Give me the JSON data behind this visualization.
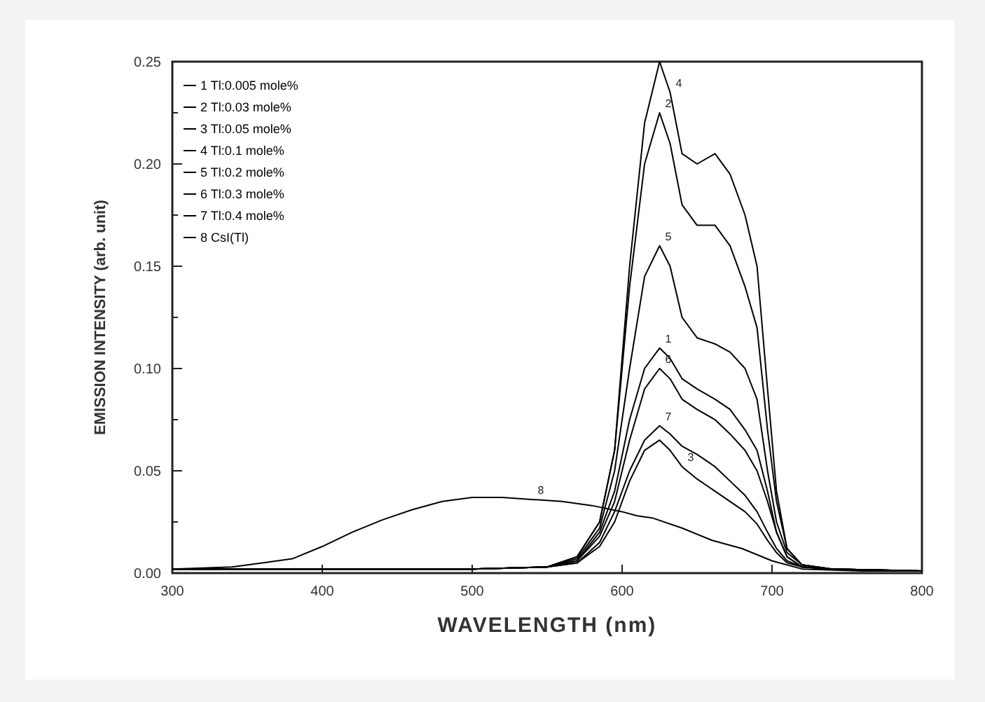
{
  "chart_data": {
    "type": "line",
    "xlabel": "WAVELENGTH (nm)",
    "ylabel": "EMISSION INTENSITY (arb. unit)",
    "x": [
      300,
      400,
      500,
      550,
      570,
      585,
      595,
      605,
      615,
      625,
      632,
      640,
      650,
      662,
      672,
      682,
      690,
      697,
      703,
      710,
      720,
      740,
      800
    ],
    "xlim": [
      300,
      800
    ],
    "xticks": [
      300,
      400,
      500,
      600,
      700,
      800
    ],
    "ylim": [
      0,
      0.25
    ],
    "yticks": [
      {
        "value": 0,
        "label": "0.00"
      },
      {
        "value": 0.025,
        "label": null
      },
      {
        "value": 0.05,
        "label": "0.05"
      },
      {
        "value": 0.075,
        "label": null
      },
      {
        "value": 0.1,
        "label": "0.10"
      },
      {
        "value": 0.125,
        "label": null
      },
      {
        "value": 0.15,
        "label": "0.15"
      },
      {
        "value": 0.175,
        "label": null
      },
      {
        "value": 0.2,
        "label": "0.20"
      },
      {
        "value": 0.225,
        "label": null
      },
      {
        "value": 0.25,
        "label": "0.25"
      }
    ],
    "legend": "top left",
    "grid": false,
    "marker": "none",
    "line_style": "solid",
    "series": [
      {
        "name": "1 Tl:0.005 mole%",
        "color": "#000000",
        "values": [
          0.002,
          0.002,
          0.002,
          0.003,
          0.006,
          0.02,
          0.04,
          0.075,
          0.1,
          0.11,
          0.105,
          0.095,
          0.09,
          0.085,
          0.08,
          0.07,
          0.06,
          0.04,
          0.02,
          0.008,
          0.003,
          0.002,
          0.001
        ]
      },
      {
        "name": "2 Tl:0.03 mole%",
        "color": "#000000",
        "values": [
          0.002,
          0.002,
          0.002,
          0.003,
          0.008,
          0.025,
          0.06,
          0.14,
          0.2,
          0.225,
          0.21,
          0.18,
          0.17,
          0.17,
          0.16,
          0.14,
          0.12,
          0.07,
          0.035,
          0.012,
          0.004,
          0.002,
          0.001
        ]
      },
      {
        "name": "3 Tl:0.05 mole%",
        "color": "#000000",
        "values": [
          0.002,
          0.002,
          0.002,
          0.003,
          0.005,
          0.013,
          0.025,
          0.045,
          0.06,
          0.065,
          0.06,
          0.052,
          0.046,
          0.04,
          0.035,
          0.03,
          0.024,
          0.016,
          0.01,
          0.005,
          0.003,
          0.002,
          0.001
        ]
      },
      {
        "name": "4 Tl:0.1 mole%",
        "color": "#000000",
        "values": [
          0.002,
          0.002,
          0.002,
          0.003,
          0.008,
          0.025,
          0.06,
          0.15,
          0.22,
          0.25,
          0.235,
          0.205,
          0.2,
          0.205,
          0.195,
          0.175,
          0.15,
          0.09,
          0.04,
          0.012,
          0.004,
          0.002,
          0.001
        ]
      },
      {
        "name": "5 Tl:0.2 mole%",
        "color": "#000000",
        "values": [
          0.002,
          0.002,
          0.002,
          0.003,
          0.007,
          0.022,
          0.05,
          0.1,
          0.145,
          0.16,
          0.15,
          0.125,
          0.115,
          0.112,
          0.108,
          0.1,
          0.085,
          0.05,
          0.025,
          0.01,
          0.004,
          0.002,
          0.001
        ]
      },
      {
        "name": "6 Tl:0.3 mole%",
        "color": "#000000",
        "values": [
          0.002,
          0.002,
          0.002,
          0.003,
          0.006,
          0.018,
          0.035,
          0.065,
          0.09,
          0.1,
          0.095,
          0.085,
          0.08,
          0.075,
          0.068,
          0.06,
          0.05,
          0.035,
          0.02,
          0.008,
          0.003,
          0.002,
          0.001
        ]
      },
      {
        "name": "7 Tl:0.4 mole%",
        "color": "#000000",
        "values": [
          0.002,
          0.002,
          0.002,
          0.003,
          0.005,
          0.015,
          0.03,
          0.05,
          0.065,
          0.072,
          0.068,
          0.062,
          0.058,
          0.052,
          0.045,
          0.038,
          0.03,
          0.02,
          0.012,
          0.006,
          0.003,
          0.002,
          0.001
        ]
      },
      {
        "name": "8 CsI(Tl)",
        "color": "#000000",
        "x": [
          300,
          340,
          360,
          380,
          400,
          420,
          440,
          460,
          480,
          500,
          520,
          540,
          560,
          580,
          600,
          610,
          620,
          640,
          660,
          680,
          700,
          720,
          760,
          800
        ],
        "values": [
          0.002,
          0.003,
          0.005,
          0.007,
          0.013,
          0.02,
          0.026,
          0.031,
          0.035,
          0.037,
          0.037,
          0.036,
          0.035,
          0.033,
          0.03,
          0.028,
          0.027,
          0.022,
          0.016,
          0.012,
          0.006,
          0.002,
          0.001,
          0.001
        ]
      }
    ],
    "annotations": [
      {
        "text": "4",
        "x": 632,
        "y": 0.235
      },
      {
        "text": "2",
        "x": 625,
        "y": 0.225
      },
      {
        "text": "5",
        "x": 625,
        "y": 0.16
      },
      {
        "text": "1",
        "x": 625,
        "y": 0.11
      },
      {
        "text": "6",
        "x": 625,
        "y": 0.1
      },
      {
        "text": "7",
        "x": 625,
        "y": 0.072
      },
      {
        "text": "3",
        "x": 640,
        "y": 0.052
      },
      {
        "text": "8",
        "x": 540,
        "y": 0.036
      }
    ]
  }
}
